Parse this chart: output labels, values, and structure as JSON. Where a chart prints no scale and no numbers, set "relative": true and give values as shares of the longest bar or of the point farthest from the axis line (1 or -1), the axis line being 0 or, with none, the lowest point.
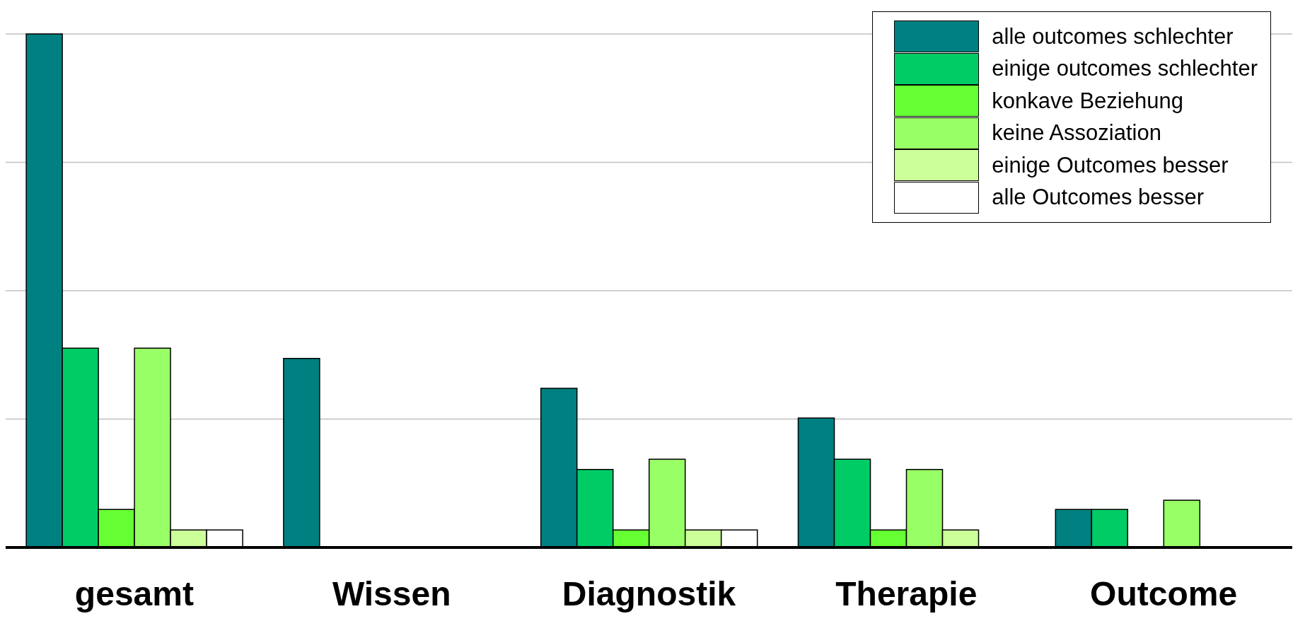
{
  "chart_data": {
    "type": "bar",
    "relative": true,
    "grid": "y",
    "legend": "top right",
    "categories": [
      "gesamt",
      "Wissen",
      "Diagnostik",
      "Therapie",
      "Outcome"
    ],
    "series": [
      {
        "name": "alle outcomes schlechter",
        "color": "#008080",
        "values": [
          1,
          0.368,
          0.31,
          0.252,
          0.074
        ]
      },
      {
        "name": "einige outcomes schlechter",
        "color": "#00cc66",
        "values": [
          0.388,
          null,
          0.152,
          0.172,
          0.074
        ]
      },
      {
        "name": "konkave Beziehung",
        "color": "#66ff33",
        "values": [
          0.074,
          null,
          0.034,
          0.034,
          null
        ]
      },
      {
        "name": "keine Assoziation",
        "color": "#99ff66",
        "values": [
          0.388,
          null,
          0.172,
          0.152,
          0.092
        ]
      },
      {
        "name": "einige Outcomes besser",
        "color": "#ccff99",
        "values": [
          0.034,
          null,
          0.034,
          0.034,
          null
        ]
      },
      {
        "name": "alle Outcomes besser",
        "color": "#ffffff",
        "values": [
          0.034,
          null,
          0.034,
          null,
          null
        ]
      }
    ]
  }
}
